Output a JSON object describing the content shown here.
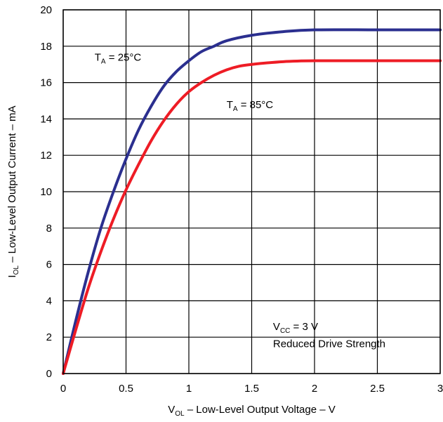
{
  "chart_data": {
    "type": "line",
    "title": "",
    "xlabel": {
      "main": "V",
      "sub": "OL",
      "rest": " – Low-Level Output Voltage – V"
    },
    "ylabel": {
      "main": "I",
      "sub": "OL",
      "rest": " – Low-Level Output Current – mA"
    },
    "xlim": [
      0,
      3
    ],
    "ylim": [
      0,
      20
    ],
    "x_ticks": [
      0,
      0.5,
      1,
      1.5,
      2,
      2.5,
      3
    ],
    "x_tick_labels": [
      "0",
      "0.5",
      "1",
      "1.5",
      "2",
      "2.5",
      "3"
    ],
    "y_ticks": [
      0,
      2,
      4,
      6,
      8,
      10,
      12,
      14,
      16,
      18,
      20
    ],
    "y_tick_labels": [
      "0",
      "2",
      "4",
      "6",
      "8",
      "10",
      "12",
      "14",
      "16",
      "18",
      "20"
    ],
    "grid": true,
    "series": [
      {
        "name": "TA = 25°C",
        "color": "#2b2f8f",
        "x": [
          0,
          0.1,
          0.2,
          0.3,
          0.4,
          0.5,
          0.6,
          0.7,
          0.8,
          0.9,
          1.0,
          1.1,
          1.2,
          1.3,
          1.5,
          1.75,
          2.0,
          2.5,
          3.0
        ],
        "y": [
          0,
          2.9,
          5.6,
          8.0,
          10.0,
          11.8,
          13.4,
          14.7,
          15.8,
          16.6,
          17.2,
          17.7,
          18.0,
          18.3,
          18.6,
          18.8,
          18.9,
          18.9,
          18.9
        ]
      },
      {
        "name": "TA = 85°C",
        "color": "#ee1c25",
        "x": [
          0,
          0.1,
          0.2,
          0.3,
          0.4,
          0.5,
          0.6,
          0.7,
          0.8,
          0.9,
          1.0,
          1.1,
          1.2,
          1.3,
          1.4,
          1.5,
          1.75,
          2.0,
          2.5,
          3.0
        ],
        "y": [
          0,
          2.4,
          4.7,
          6.7,
          8.5,
          10.1,
          11.5,
          12.8,
          13.9,
          14.8,
          15.5,
          16.0,
          16.4,
          16.7,
          16.9,
          17.0,
          17.15,
          17.2,
          17.2,
          17.2
        ]
      }
    ],
    "annotations": [
      {
        "id": "t25",
        "main": "T",
        "sub": "A",
        "rest": " = 25°C",
        "x": 0.25,
        "y": 17.2
      },
      {
        "id": "t85",
        "main": "T",
        "sub": "A",
        "rest": " = 85°C",
        "x": 1.3,
        "y": 14.6
      },
      {
        "id": "vcc",
        "main": "V",
        "sub": "CC",
        "rest": " = 3 V",
        "x": 1.67,
        "y": 2.4
      },
      {
        "id": "drive",
        "text": "Reduced Drive Strength",
        "x": 1.67,
        "y": 1.45
      }
    ]
  }
}
